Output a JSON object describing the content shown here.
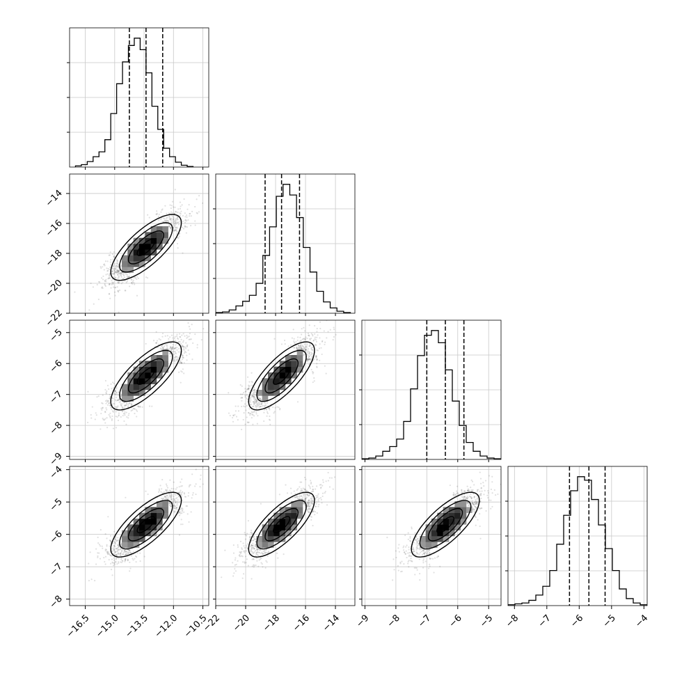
{
  "chart_data": {
    "type": "corner",
    "description_free": true,
    "params": [
      {
        "range": [
          -17.3,
          -10.2
        ],
        "ticks": [
          -16.5,
          -15.0,
          -13.5,
          -12.0,
          -10.5
        ],
        "tick_labels": [
          "−16.5",
          "−15.0",
          "−13.5",
          "−12.0",
          "−10.5"
        ],
        "quantiles": [
          -14.25,
          -13.4,
          -12.55
        ],
        "hist": {
          "edges_start": -17.0,
          "bin_width": 0.3,
          "counts": [
            2,
            4,
            9,
            17,
            25,
            45,
            88,
            137,
            173,
            200,
            212,
            193,
            155,
            100,
            62,
            31,
            17,
            8,
            3,
            1
          ]
        }
      },
      {
        "range": [
          -22,
          -12.7
        ],
        "ticks": [
          -22,
          -20,
          -18,
          -16,
          -14
        ],
        "tick_labels": [
          "−22",
          "−20",
          "−18",
          "−16",
          "−14"
        ],
        "quantiles": [
          -18.7,
          -17.6,
          -16.4
        ],
        "hist": {
          "edges_start": -22.0,
          "bin_width": 0.45,
          "counts": [
            1,
            2,
            5,
            11,
            18,
            27,
            45,
            87,
            130,
            176,
            194,
            178,
            144,
            99,
            62,
            33,
            17,
            8,
            3,
            1
          ]
        }
      },
      {
        "range": [
          -9.1,
          -4.6
        ],
        "ticks": [
          -9,
          -8,
          -7,
          -6,
          -5
        ],
        "tick_labels": [
          "−9",
          "−8",
          "−7",
          "−6",
          "−5"
        ],
        "quantiles": [
          -7.0,
          -6.4,
          -5.8
        ],
        "hist": {
          "edges_start": -9.1,
          "bin_width": 0.225,
          "counts": [
            1,
            2,
            5,
            12,
            19,
            30,
            56,
            104,
            153,
            183,
            190,
            172,
            132,
            86,
            50,
            25,
            12,
            5,
            2,
            1
          ]
        }
      },
      {
        "range": [
          -8.2,
          -3.9
        ],
        "ticks": [
          -8,
          -7,
          -6,
          -5,
          -4
        ],
        "tick_labels": [
          "−8",
          "−7",
          "−6",
          "−5",
          "−4"
        ],
        "quantiles": [
          -6.3,
          -5.7,
          -5.2
        ],
        "hist": {
          "edges_start": -8.2,
          "bin_width": 0.215,
          "counts": [
            1,
            2,
            3,
            6,
            12,
            22,
            40,
            70,
            103,
            131,
            147,
            143,
            121,
            92,
            65,
            40,
            19,
            8,
            3,
            1
          ]
        }
      }
    ],
    "joint": {
      "means": [
        -13.4,
        -17.6,
        -6.4,
        -5.7
      ],
      "sds": [
        0.9,
        1.1,
        0.55,
        0.5
      ],
      "correlation": 0.75
    },
    "grid": true,
    "contour_levels_sigma": [
      0.5,
      1.0,
      1.5,
      2.0
    ]
  }
}
